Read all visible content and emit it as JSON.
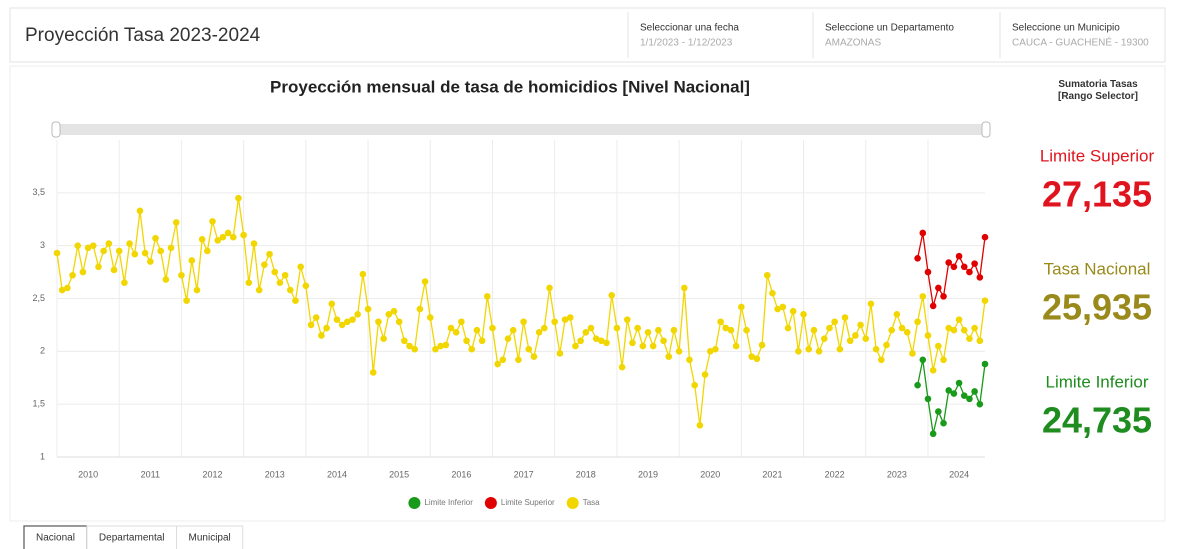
{
  "header": {
    "title": "Proyección Tasa 2023-2024",
    "filters": [
      {
        "label": "Seleccionar una fecha",
        "value": "1/1/2023 - 1/12/2023"
      },
      {
        "label": "Seleccione un Departamento",
        "value": "AMAZONAS"
      },
      {
        "label": "Seleccione un Municipio",
        "value": "CAUCA - GUACHENÉ - 19300"
      }
    ]
  },
  "chart_data": {
    "type": "line",
    "title": "Proyección mensual de tasa de homicidios [Nivel Nacional]",
    "x": [
      "2010-01",
      "2010-02",
      "2010-03",
      "2010-04",
      "2010-05",
      "2010-06",
      "2010-07",
      "2010-08",
      "2010-09",
      "2010-10",
      "2010-11",
      "2010-12",
      "2011-01",
      "2011-02",
      "2011-03",
      "2011-04",
      "2011-05",
      "2011-06",
      "2011-07",
      "2011-08",
      "2011-09",
      "2011-10",
      "2011-11",
      "2011-12",
      "2012-01",
      "2012-02",
      "2012-03",
      "2012-04",
      "2012-05",
      "2012-06",
      "2012-07",
      "2012-08",
      "2012-09",
      "2012-10",
      "2012-11",
      "2012-12",
      "2013-01",
      "2013-02",
      "2013-03",
      "2013-04",
      "2013-05",
      "2013-06",
      "2013-07",
      "2013-08",
      "2013-09",
      "2013-10",
      "2013-11",
      "2013-12",
      "2014-01",
      "2014-02",
      "2014-03",
      "2014-04",
      "2014-05",
      "2014-06",
      "2014-07",
      "2014-08",
      "2014-09",
      "2014-10",
      "2014-11",
      "2014-12",
      "2015-01",
      "2015-02",
      "2015-03",
      "2015-04",
      "2015-05",
      "2015-06",
      "2015-07",
      "2015-08",
      "2015-09",
      "2015-10",
      "2015-11",
      "2015-12",
      "2016-01",
      "2016-02",
      "2016-03",
      "2016-04",
      "2016-05",
      "2016-06",
      "2016-07",
      "2016-08",
      "2016-09",
      "2016-10",
      "2016-11",
      "2016-12",
      "2017-01",
      "2017-02",
      "2017-03",
      "2017-04",
      "2017-05",
      "2017-06",
      "2017-07",
      "2017-08",
      "2017-09",
      "2017-10",
      "2017-11",
      "2017-12",
      "2018-01",
      "2018-02",
      "2018-03",
      "2018-04",
      "2018-05",
      "2018-06",
      "2018-07",
      "2018-08",
      "2018-09",
      "2018-10",
      "2018-11",
      "2018-12",
      "2019-01",
      "2019-02",
      "2019-03",
      "2019-04",
      "2019-05",
      "2019-06",
      "2019-07",
      "2019-08",
      "2019-09",
      "2019-10",
      "2019-11",
      "2019-12",
      "2020-01",
      "2020-02",
      "2020-03",
      "2020-04",
      "2020-05",
      "2020-06",
      "2020-07",
      "2020-08",
      "2020-09",
      "2020-10",
      "2020-11",
      "2020-12",
      "2021-01",
      "2021-02",
      "2021-03",
      "2021-04",
      "2021-05",
      "2021-06",
      "2021-07",
      "2021-08",
      "2021-09",
      "2021-10",
      "2021-11",
      "2021-12",
      "2022-01",
      "2022-02",
      "2022-03",
      "2022-04",
      "2022-05",
      "2022-06",
      "2022-07",
      "2022-08",
      "2022-09",
      "2022-10",
      "2022-11",
      "2022-12",
      "2023-01",
      "2023-02",
      "2023-03",
      "2023-04",
      "2023-05",
      "2023-06",
      "2023-07",
      "2023-08",
      "2023-09",
      "2023-10",
      "2023-11",
      "2023-12",
      "2024-01",
      "2024-02",
      "2024-03",
      "2024-04",
      "2024-05",
      "2024-06",
      "2024-07",
      "2024-08",
      "2024-09",
      "2024-10",
      "2024-11",
      "2024-12"
    ],
    "series": [
      {
        "name": "Limite Inferior",
        "color": "#1a9a1a",
        "x": [
          "2023-11",
          "2023-12",
          "2024-01",
          "2024-02",
          "2024-03",
          "2024-04",
          "2024-05",
          "2024-06",
          "2024-07",
          "2024-08",
          "2024-09",
          "2024-10",
          "2024-11",
          "2024-12"
        ],
        "values": [
          1.68,
          1.92,
          1.55,
          1.22,
          1.43,
          1.32,
          1.63,
          1.6,
          1.7,
          1.58,
          1.55,
          1.62,
          1.5,
          1.88
        ]
      },
      {
        "name": "Limite Superior",
        "color": "#e00000",
        "x": [
          "2023-11",
          "2023-12",
          "2024-01",
          "2024-02",
          "2024-03",
          "2024-04",
          "2024-05",
          "2024-06",
          "2024-07",
          "2024-08",
          "2024-09",
          "2024-10",
          "2024-11",
          "2024-12"
        ],
        "values": [
          2.88,
          3.12,
          2.75,
          2.43,
          2.6,
          2.52,
          2.84,
          2.8,
          2.9,
          2.8,
          2.75,
          2.83,
          2.7,
          3.08
        ]
      },
      {
        "name": "Tasa",
        "color": "#f2d600",
        "values": [
          2.93,
          2.58,
          2.6,
          2.72,
          3.0,
          2.75,
          2.98,
          3.0,
          2.8,
          2.95,
          3.02,
          2.77,
          2.95,
          2.65,
          3.02,
          2.92,
          3.33,
          2.93,
          2.85,
          3.07,
          2.95,
          2.68,
          2.98,
          3.22,
          2.72,
          2.48,
          2.86,
          2.58,
          3.06,
          2.95,
          3.23,
          3.05,
          3.08,
          3.12,
          3.08,
          3.45,
          3.1,
          2.65,
          3.02,
          2.58,
          2.82,
          2.92,
          2.75,
          2.65,
          2.72,
          2.58,
          2.48,
          2.8,
          2.62,
          2.25,
          2.32,
          2.15,
          2.22,
          2.45,
          2.3,
          2.25,
          2.28,
          2.3,
          2.35,
          2.73,
          2.4,
          1.8,
          2.28,
          2.12,
          2.35,
          2.38,
          2.28,
          2.1,
          2.05,
          2.02,
          2.4,
          2.66,
          2.32,
          2.02,
          2.05,
          2.06,
          2.22,
          2.18,
          2.28,
          2.1,
          2.02,
          2.2,
          2.1,
          2.52,
          2.22,
          1.88,
          1.92,
          2.12,
          2.2,
          1.92,
          2.28,
          2.02,
          1.95,
          2.18,
          2.22,
          2.6,
          2.28,
          1.98,
          2.3,
          2.32,
          2.05,
          2.1,
          2.18,
          2.22,
          2.12,
          2.1,
          2.08,
          2.53,
          2.22,
          1.85,
          2.3,
          2.08,
          2.22,
          2.05,
          2.18,
          2.05,
          2.2,
          2.1,
          1.95,
          2.2,
          2.0,
          2.6,
          1.92,
          1.68,
          1.3,
          1.78,
          2.0,
          2.02,
          2.28,
          2.22,
          2.2,
          2.05,
          2.42,
          2.2,
          1.95,
          1.93,
          2.06,
          2.72,
          2.55,
          2.4,
          2.42,
          2.22,
          2.38,
          2.0,
          2.35,
          2.02,
          2.2,
          2.0,
          2.12,
          2.22,
          2.28,
          2.02,
          2.32,
          2.1,
          2.15,
          2.25,
          2.12,
          2.45,
          2.02,
          1.92,
          2.06,
          2.2,
          2.35,
          2.22,
          2.18,
          1.98,
          2.28,
          2.52,
          2.15,
          1.82,
          2.05,
          1.92,
          2.22,
          2.2,
          2.3,
          2.2,
          2.12,
          2.22,
          2.1,
          2.48
        ]
      }
    ],
    "xlim": [
      "2010-01",
      "2024-12"
    ],
    "xticks": [
      2010,
      2011,
      2012,
      2013,
      2014,
      2015,
      2016,
      2017,
      2018,
      2019,
      2020,
      2021,
      2022,
      2023,
      2024
    ],
    "ylim": [
      1,
      4
    ],
    "yticks": [
      1,
      {
        "value": 1.5,
        "label": "1,5"
      },
      2,
      {
        "value": 2.5,
        "label": "2,5"
      },
      3,
      {
        "value": 3.5,
        "label": "3,5"
      }
    ],
    "grid": true,
    "legend": "bottom"
  },
  "summary": {
    "title": "Sumatoria Tasas [Rango Selector]",
    "items": [
      {
        "label": "Limite Superior",
        "value": "27,135",
        "color": "#e0141e"
      },
      {
        "label": "Tasa Nacional",
        "value": "25,935",
        "color": "#9a8a1c"
      },
      {
        "label": "Limite Inferior",
        "value": "24,735",
        "color": "#1e8c1e"
      }
    ]
  },
  "tabs": [
    "Nacional",
    "Departamental",
    "Municipal"
  ]
}
